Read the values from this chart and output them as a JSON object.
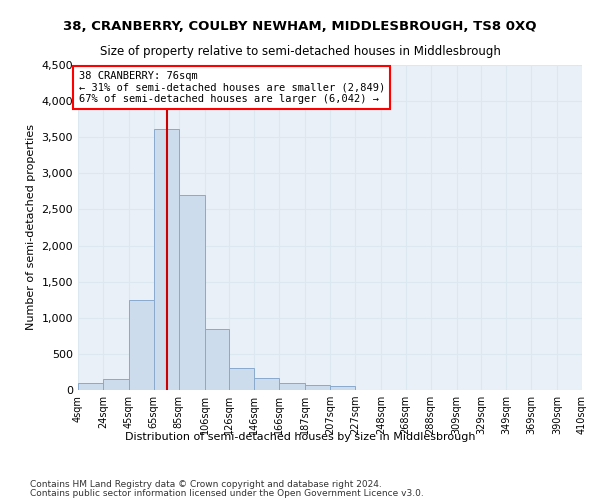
{
  "title": "38, CRANBERRY, COULBY NEWHAM, MIDDLESBROUGH, TS8 0XQ",
  "subtitle": "Size of property relative to semi-detached houses in Middlesbrough",
  "xlabel": "Distribution of semi-detached houses by size in Middlesbrough",
  "ylabel": "Number of semi-detached properties",
  "bar_color": "#ccdcec",
  "bar_edge_color": "#88aacc",
  "property_size": 76,
  "property_label": "38 CRANBERRY: 76sqm",
  "annotation_line1": "← 31% of semi-detached houses are smaller (2,849)",
  "annotation_line2": "67% of semi-detached houses are larger (6,042) →",
  "vline_color": "#cc0000",
  "bins": [
    4,
    24,
    45,
    65,
    85,
    106,
    126,
    146,
    166,
    187,
    207,
    227,
    248,
    268,
    288,
    309,
    329,
    349,
    369,
    390,
    410
  ],
  "counts": [
    100,
    150,
    1250,
    3620,
    2700,
    850,
    300,
    160,
    100,
    65,
    50,
    0,
    0,
    0,
    0,
    0,
    0,
    0,
    0,
    0
  ],
  "ylim": [
    0,
    4500
  ],
  "yticks": [
    0,
    500,
    1000,
    1500,
    2000,
    2500,
    3000,
    3500,
    4000,
    4500
  ],
  "grid_color": "#dce8f0",
  "background_color": "#eaf0f8",
  "footer_line1": "Contains HM Land Registry data © Crown copyright and database right 2024.",
  "footer_line2": "Contains public sector information licensed under the Open Government Licence v3.0."
}
